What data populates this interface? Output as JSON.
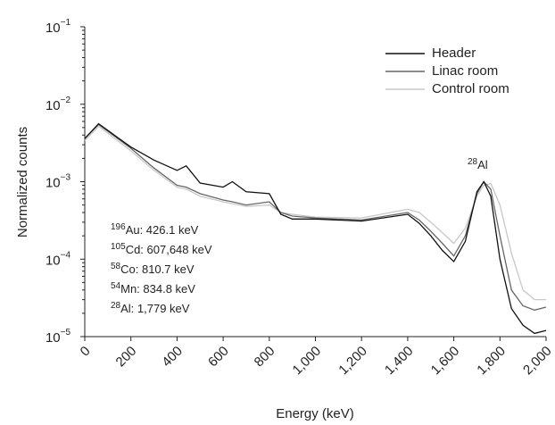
{
  "chart_data": {
    "type": "line",
    "xlabel": "Energy (keV)",
    "ylabel": "Normalized counts",
    "log_y": true,
    "legend": "upper right",
    "xlim": [
      0,
      2000
    ],
    "ylim": [
      1e-05,
      0.1
    ],
    "xticks": [
      0,
      200,
      400,
      600,
      800,
      {
        "value": 1000,
        "label": "1,000"
      },
      {
        "value": 1200,
        "label": "1,200"
      },
      {
        "value": 1400,
        "label": "1,400"
      },
      {
        "value": 1600,
        "label": "1,600"
      },
      {
        "value": 1800,
        "label": "1,800"
      },
      {
        "value": 2000,
        "label": "2,000"
      }
    ],
    "yticks": [
      {
        "value": 0.1,
        "label": "10",
        "exponent": "−1"
      },
      {
        "value": 0.01,
        "label": "10",
        "exponent": "−2"
      },
      {
        "value": 0.001,
        "label": "10",
        "exponent": "−3"
      },
      {
        "value": 0.0001,
        "label": "10",
        "exponent": "−4"
      },
      {
        "value": 1e-05,
        "label": "10",
        "exponent": "−5"
      }
    ],
    "x": [
      0,
      60,
      200,
      300,
      400,
      440,
      500,
      600,
      640,
      700,
      800,
      850,
      900,
      1000,
      1200,
      1400,
      1450,
      1500,
      1550,
      1600,
      1650,
      1700,
      1730,
      1760,
      1800,
      1850,
      1900,
      1950,
      2000
    ],
    "series": [
      {
        "name": "Header",
        "color": "#111111",
        "values": [
          0.0036,
          0.0056,
          0.0028,
          0.0019,
          0.0014,
          0.0016,
          0.00096,
          0.00085,
          0.001,
          0.00074,
          0.0007,
          0.00038,
          0.00033,
          0.00033,
          0.00031,
          0.00038,
          0.00029,
          0.0002,
          0.00013,
          9.3e-05,
          0.00017,
          0.00074,
          0.001,
          0.00065,
          0.0001,
          2.3e-05,
          1.4e-05,
          1.1e-05,
          1.2e-05
        ]
      },
      {
        "name": "Linac room",
        "color": "#666666",
        "values": [
          0.0036,
          0.0055,
          0.0027,
          0.0015,
          0.0009,
          0.00085,
          0.0007,
          0.00058,
          0.00055,
          0.0005,
          0.00055,
          0.0004,
          0.00036,
          0.00034,
          0.00032,
          0.0004,
          0.00032,
          0.00023,
          0.00016,
          0.00011,
          0.0002,
          0.0007,
          0.001,
          0.0008,
          0.0002,
          4e-05,
          2.5e-05,
          2.2e-05,
          2.4e-05
        ]
      },
      {
        "name": "Control room",
        "color": "#c8c8c8",
        "values": [
          0.0034,
          0.0052,
          0.0025,
          0.0014,
          0.00085,
          0.0008,
          0.00065,
          0.00055,
          0.00052,
          0.00048,
          0.0005,
          0.0004,
          0.00038,
          0.00035,
          0.00034,
          0.00044,
          0.0004,
          0.0003,
          0.00022,
          0.00016,
          0.00025,
          0.00065,
          0.0009,
          0.00095,
          0.0005,
          0.00012,
          4e-05,
          3e-05,
          3e-05
        ]
      }
    ],
    "peak_label": {
      "mass": "28",
      "text": "Al"
    },
    "annotations": [
      {
        "mass": "196",
        "text": "Au: 426.1 keV"
      },
      {
        "mass": "105",
        "text": "Cd: 607,648 keV"
      },
      {
        "mass": "58",
        "text": "Co: 810.7 keV"
      },
      {
        "mass": "54",
        "text": "Mn: 834.8 keV"
      },
      {
        "mass": "28",
        "text": "Al: 1,779 keV"
      }
    ]
  }
}
